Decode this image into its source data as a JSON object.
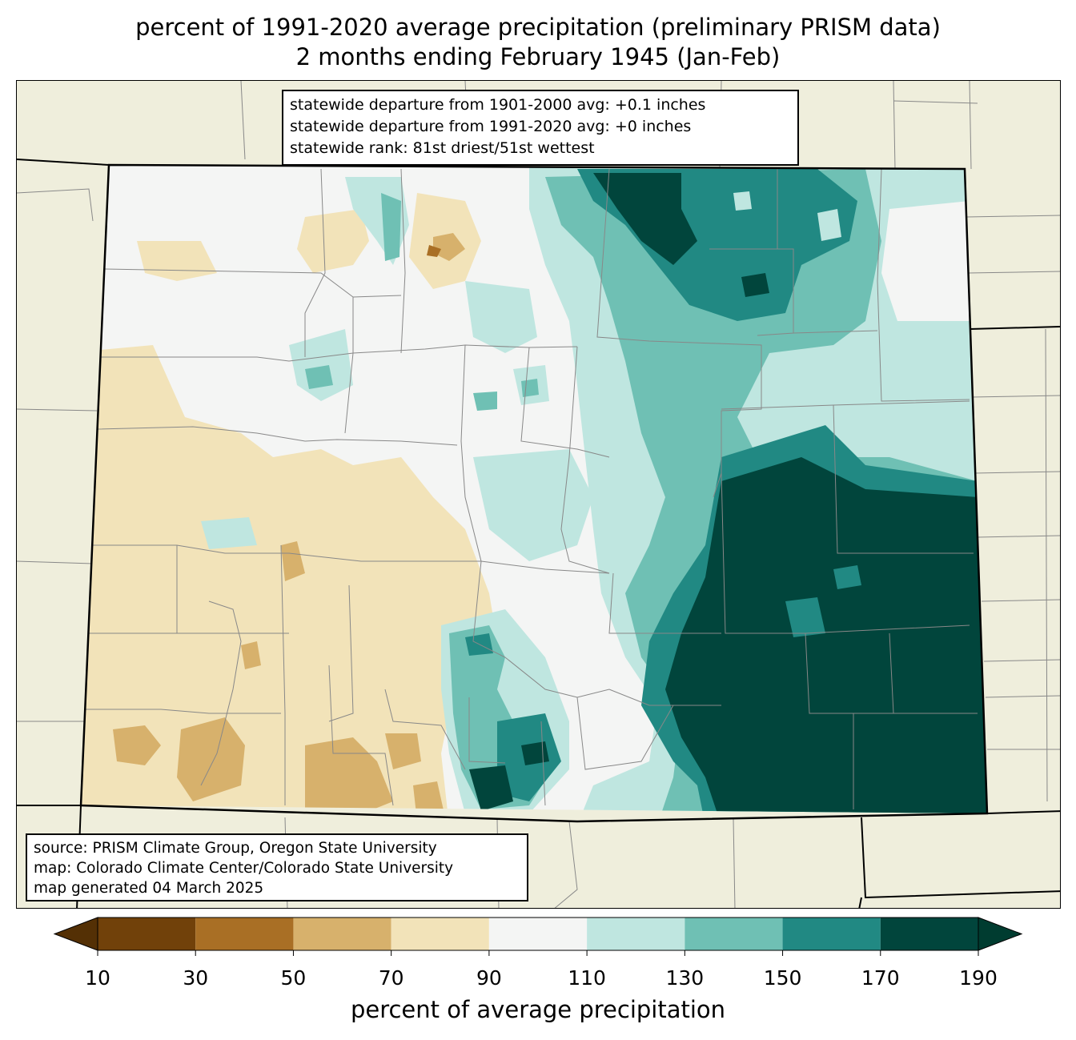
{
  "title": {
    "line1": "percent of 1991-2020 average precipitation (preliminary PRISM data)",
    "line2": "2 months ending February 1945 (Jan-Feb)"
  },
  "stats": {
    "line1": "statewide departure from 1901-2000 avg: +0.1 inches",
    "line2": "statewide departure from 1991-2020 avg: +0 inches",
    "line3": "statewide rank: 81st driest/51st wettest"
  },
  "credits": {
    "line1": "source: PRISM Climate Group, Oregon State University",
    "line2": "map: Colorado Climate Center/Colorado State University",
    "line3": "map generated 04 March 2025"
  },
  "colorbar": {
    "label": "percent of average precipitation",
    "ticks": [
      "10",
      "30",
      "50",
      "70",
      "90",
      "110",
      "130",
      "150",
      "170",
      "190"
    ],
    "under_color": "#543005",
    "over_color": "#003c30",
    "colors": [
      "#71410a",
      "#a96f25",
      "#d7b16c",
      "#f2e3b9",
      "#f4f5f4",
      "#bfe6e0",
      "#6fc0b4",
      "#218983",
      "#01453c"
    ]
  },
  "colors": {
    "land": "#efeedc",
    "state_border": "#000000",
    "county_border": "#888888"
  }
}
